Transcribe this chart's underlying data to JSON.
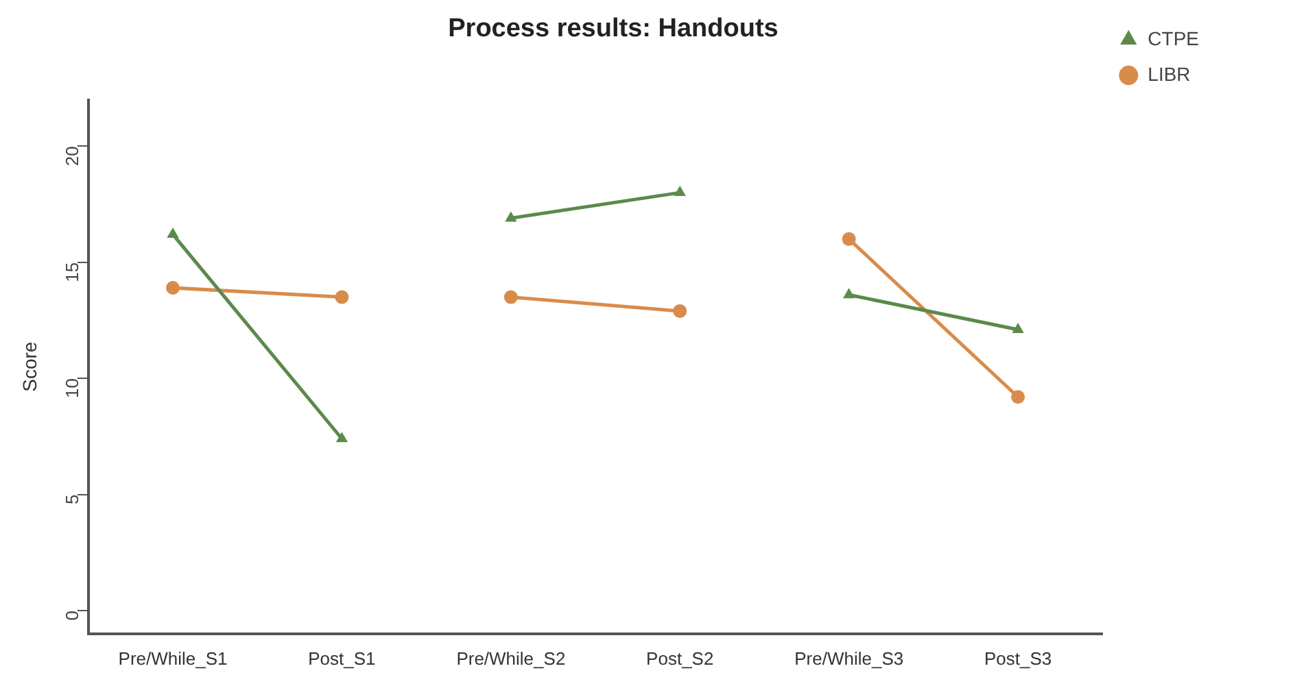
{
  "chart_data": {
    "type": "line",
    "title": "Process results: Handouts",
    "ylabel": "Score",
    "categories": [
      "Pre/While_S1",
      "Post_S1",
      "Pre/While_S2",
      "Post_S2",
      "Pre/While_S3",
      "Post_S3"
    ],
    "ylim": [
      -1,
      22
    ],
    "yticks": [
      0,
      5,
      10,
      15,
      20
    ],
    "grid": false,
    "legend": "right",
    "series": [
      {
        "name": "CTPE",
        "color": "#5b8a4b",
        "marker": "triangle",
        "values": [
          16.2,
          7.4,
          null,
          null,
          null,
          null
        ]
      },
      {
        "name": "LIBR",
        "color": "#d98b4b",
        "marker": "circle",
        "values": [
          13.9,
          13.5,
          null,
          null,
          null,
          null
        ]
      },
      {
        "color": "#5b8a4b",
        "marker": "triangle",
        "values": [
          null,
          null,
          16.9,
          18.0,
          null,
          null
        ]
      },
      {
        "color": "#d98b4b",
        "marker": "circle",
        "values": [
          null,
          null,
          13.5,
          12.9,
          null,
          null
        ]
      },
      {
        "color": "#5b8a4b",
        "marker": "triangle",
        "values": [
          null,
          null,
          null,
          null,
          13.6,
          12.1
        ]
      },
      {
        "color": "#d98b4b",
        "marker": "circle",
        "values": [
          null,
          null,
          null,
          null,
          16.0,
          9.2
        ]
      }
    ]
  }
}
